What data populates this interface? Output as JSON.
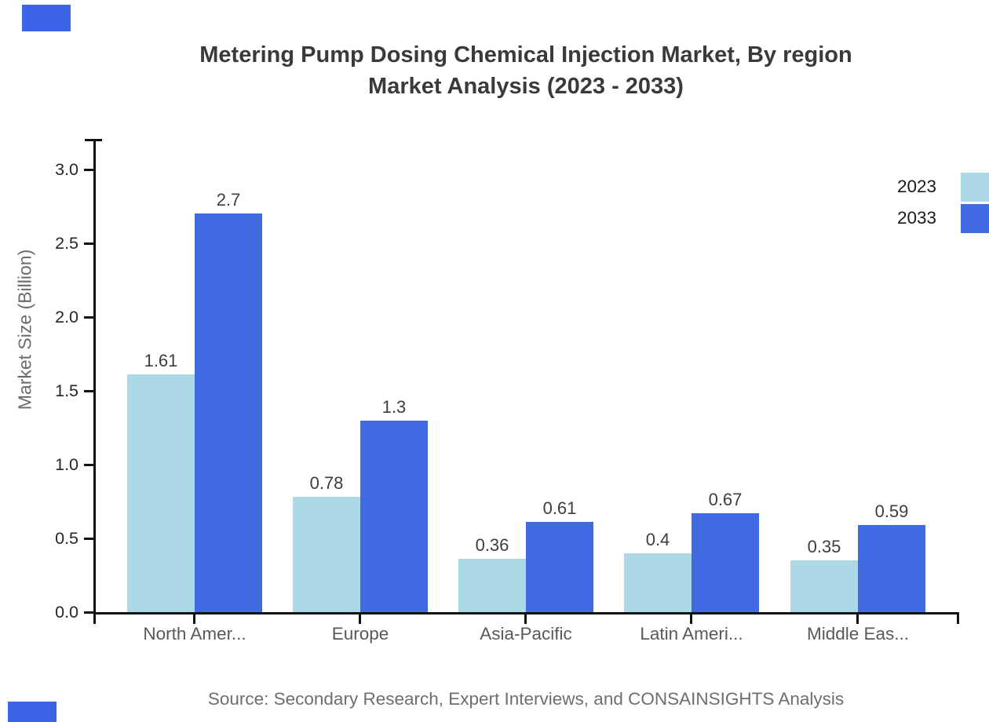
{
  "chart_data": {
    "type": "bar",
    "title": "Metering Pump Dosing Chemical Injection Market, By region Market Analysis (2023 - 2033)",
    "title_line1": "Metering Pump Dosing Chemical Injection Market, By region",
    "title_line2": "Market Analysis (2023 - 2033)",
    "ylabel": "Market Size (Billion)",
    "xlabel": "",
    "categories": [
      "North Amer...",
      "Europe",
      "Asia-Pacific",
      "Latin Ameri...",
      "Middle Eas..."
    ],
    "series": [
      {
        "name": "2023",
        "color": "#ADD8E6",
        "values": [
          1.61,
          0.78,
          0.36,
          0.4,
          0.35
        ],
        "value_labels": [
          "1.61",
          "0.78",
          "0.36",
          "0.4",
          "0.35"
        ]
      },
      {
        "name": "2033",
        "color": "#4169E1",
        "values": [
          2.7,
          1.3,
          0.61,
          0.67,
          0.59
        ],
        "value_labels": [
          "2.7",
          "1.3",
          "0.61",
          "0.67",
          "0.59"
        ]
      }
    ],
    "ytick_labels": [
      "0.0",
      "0.5",
      "1.0",
      "1.5",
      "2.0",
      "2.5",
      "3.0"
    ],
    "ytick_values": [
      0,
      0.5,
      1.0,
      1.5,
      2.0,
      2.5,
      3.0
    ],
    "ylim": [
      0,
      3.2
    ],
    "grid": false,
    "legend_position": "top-right",
    "legend": [
      {
        "label": "2023",
        "color": "#ADD8E6"
      },
      {
        "label": "2033",
        "color": "#4169E1"
      }
    ]
  },
  "footer": {
    "source_text": "Source: Secondary Research, Expert Interviews, and CONSAINSIGHTS Analysis"
  },
  "colors": {
    "series_2023": "#ADD8E6",
    "series_2033": "#4169E1",
    "axis": "#111111",
    "title_text": "#3a3a3a",
    "category_text": "#595959",
    "ytick_text": "#262626",
    "value_text": "#3d3d3d",
    "source_text": "#6e6e6e",
    "brand_square": "#3d63e6"
  }
}
